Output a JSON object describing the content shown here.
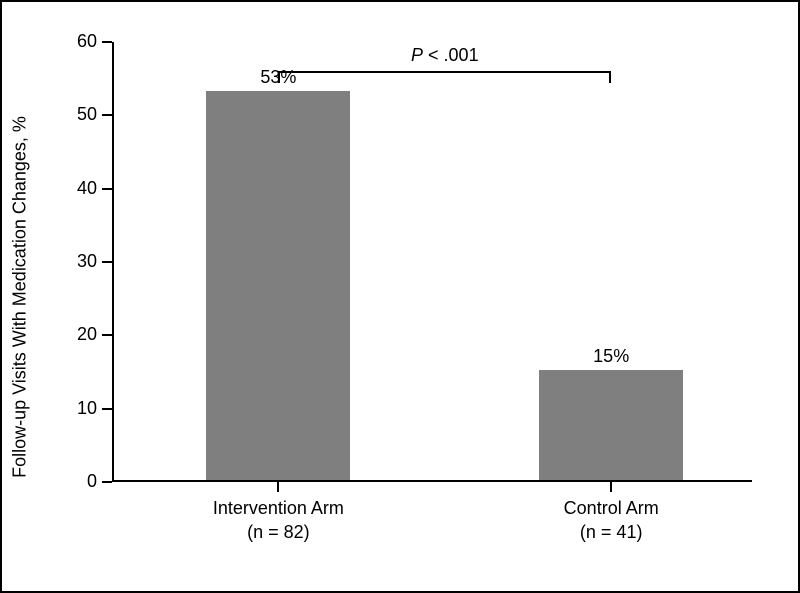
{
  "chart": {
    "type": "bar",
    "background_color": "#ffffff",
    "border_color": "#000000",
    "axis_color": "#000000",
    "y_axis": {
      "label": "Follow-up Visits With Medication Changes, %",
      "min": 0,
      "max": 60,
      "tick_step": 10,
      "ticks": [
        0,
        10,
        20,
        30,
        40,
        50,
        60
      ],
      "label_fontsize": 18,
      "tick_fontsize": 18
    },
    "bars": [
      {
        "category_line1": "Intervention Arm",
        "category_line2": "(n = 82)",
        "value": 53,
        "value_label": "53%",
        "fill_color": "#7f7f7f",
        "width_frac": 0.45,
        "center_frac": 0.26
      },
      {
        "category_line1": "Control Arm",
        "category_line2": "(n = 41)",
        "value": 15,
        "value_label": "15%",
        "fill_color": "#7f7f7f",
        "width_frac": 0.45,
        "center_frac": 0.78
      }
    ],
    "annotation": {
      "p_label_italic": "P",
      "p_label_rest": " < .001",
      "y_value": 56,
      "bracket_from_bar": 0,
      "bracket_to_bar": 1,
      "bracket_drop": 12
    }
  }
}
